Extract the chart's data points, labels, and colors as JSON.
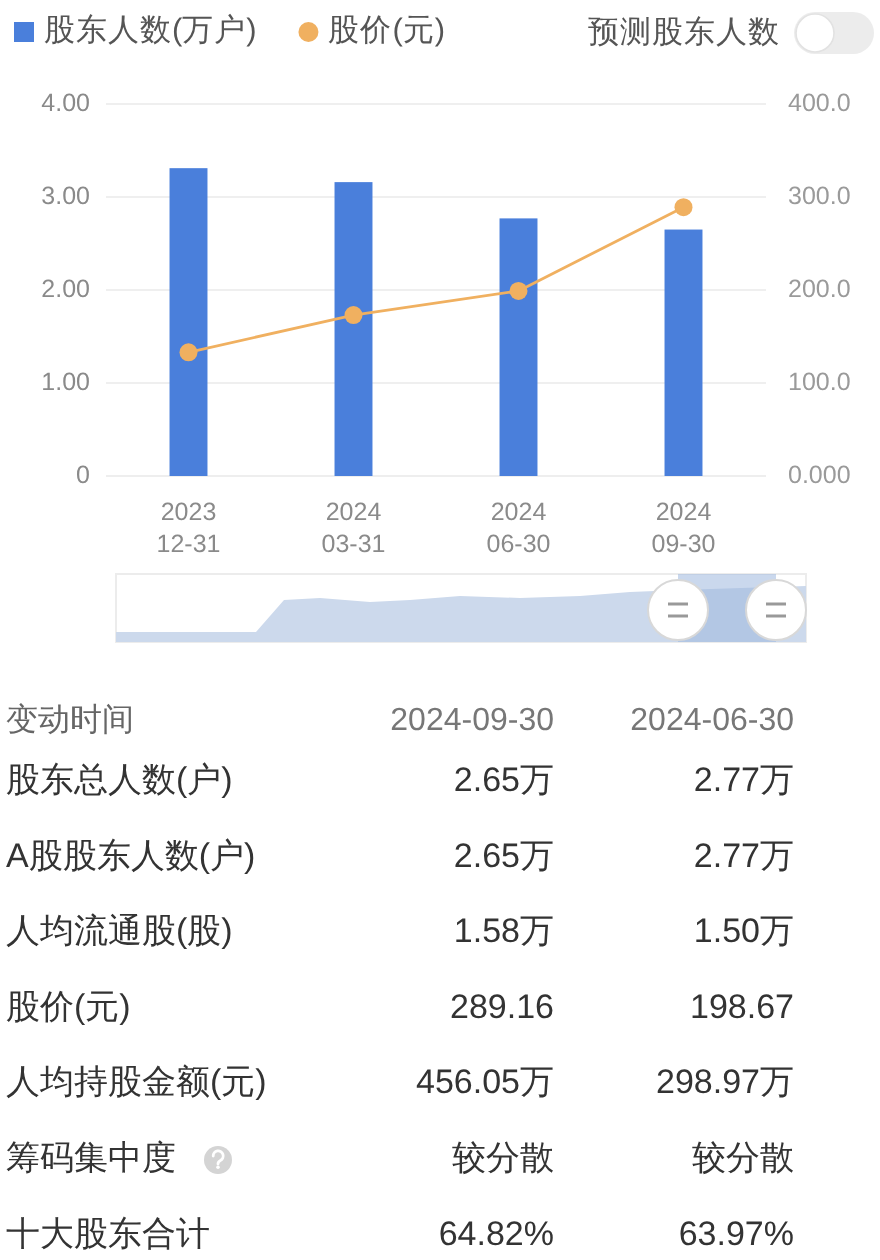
{
  "chart_data": [
    {
      "type": "bar",
      "categories": [
        "2023\n12-31",
        "2024\n03-31",
        "2024\n06-30",
        "2024\n09-30"
      ],
      "series": [
        {
          "name": "股东人数(万户)",
          "type": "bar",
          "color": "#4a7fdb",
          "values": [
            3.31,
            3.16,
            2.77,
            2.65
          ]
        },
        {
          "name": "股价(元)",
          "type": "line",
          "axis": "y2",
          "color": "#f0b060",
          "values": [
            133,
            173,
            199,
            289
          ]
        }
      ],
      "ylim": [
        0,
        4
      ],
      "yticks": [
        0,
        {
          "value": 1,
          "label": "1.00"
        },
        {
          "value": 2,
          "label": "2.00"
        },
        {
          "value": 3,
          "label": "3.00"
        },
        {
          "value": 4,
          "label": "4.00"
        }
      ],
      "y2lim": [
        0,
        400
      ],
      "y2ticks": [
        {
          "value": 0,
          "label": "0.000"
        },
        {
          "value": 100,
          "label": "100.0"
        },
        {
          "value": 200,
          "label": "200.0"
        },
        {
          "value": 300,
          "label": "300.0"
        },
        {
          "value": 400,
          "label": "400.0"
        }
      ],
      "grid": "y",
      "legend": "top left",
      "marker": "circle",
      "annotations": [
        "预测股东人数"
      ]
    },
    {
      "type": "other",
      "ylabel": "变动时间",
      "categories": [
        "2024-09-30",
        "2024-06-30"
      ],
      "y_categories": [
        "股东总人数(户)",
        "A股股东人数(户)",
        "人均流通股(股)",
        "股价(元)",
        "人均持股金额(元)",
        "筹码集中度",
        "十大股东合计"
      ],
      "cell_labels": [
        [
          "2.65万",
          "2.77万"
        ],
        [
          "2.65万",
          "2.77万"
        ],
        [
          "1.58万",
          "1.50万"
        ],
        [
          "289.16",
          "198.67"
        ],
        [
          "456.05万",
          "298.97万"
        ],
        [
          "较分散",
          "较分散"
        ],
        [
          "64.82%",
          "63.97%"
        ]
      ]
    }
  ]
}
